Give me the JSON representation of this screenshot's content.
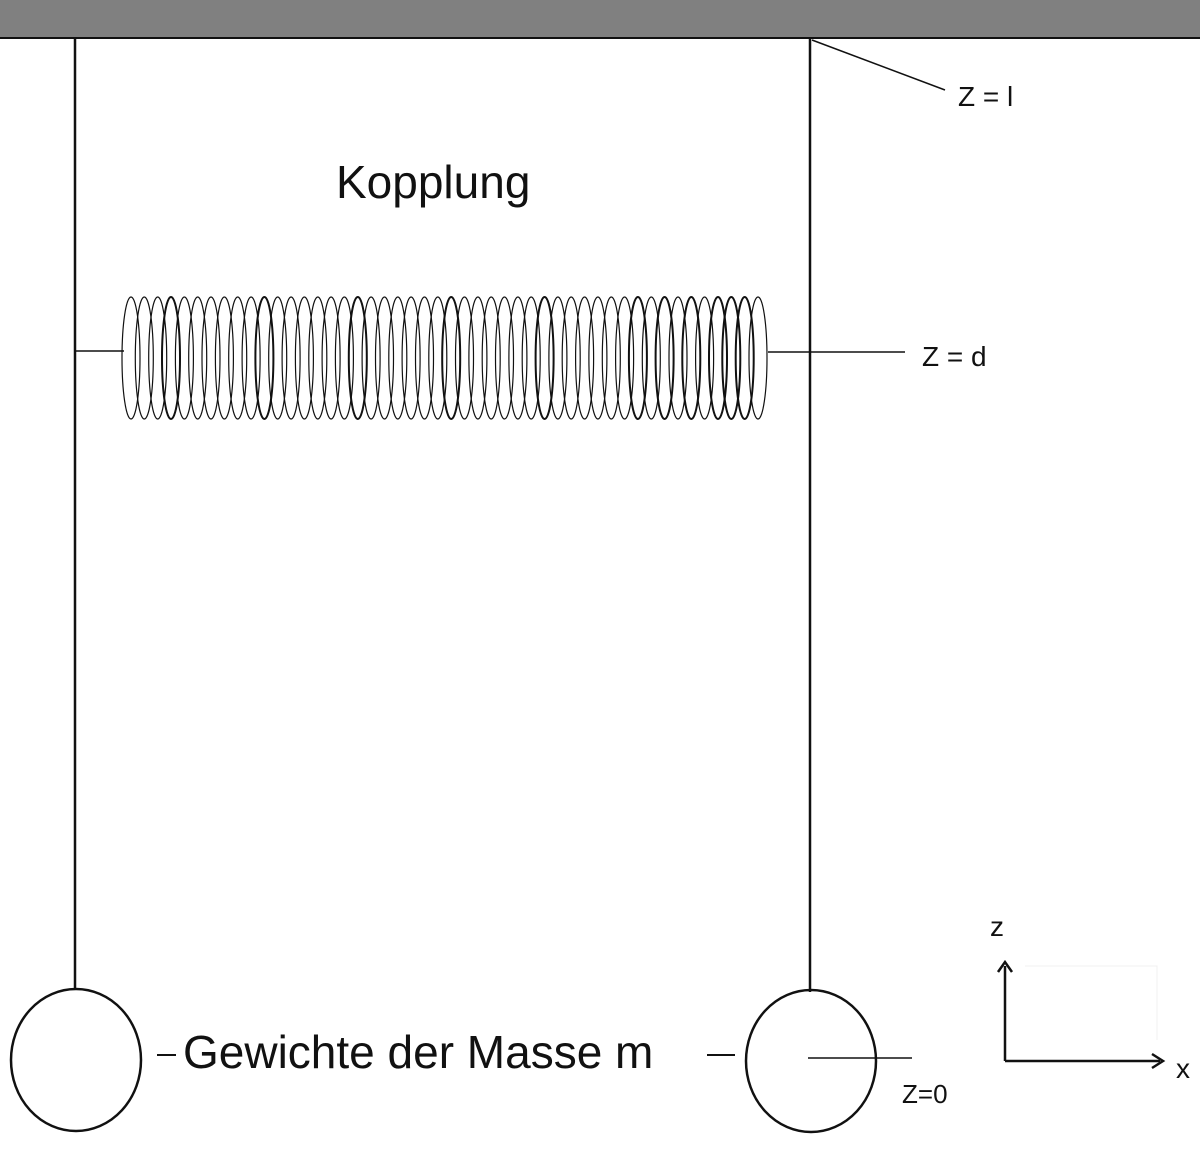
{
  "diagram": {
    "title": "Kopplung",
    "mass_label": "Gewichte der Masse m",
    "labels": {
      "z_top": "Z = l",
      "z_spring": "Z = d",
      "z_zero": "Z=0"
    },
    "axes": {
      "z": "z",
      "x": "x"
    },
    "colors": {
      "ceiling": "#808080",
      "stroke": "#111111",
      "background": "#ffffff"
    },
    "spring_coil_count": 48
  }
}
